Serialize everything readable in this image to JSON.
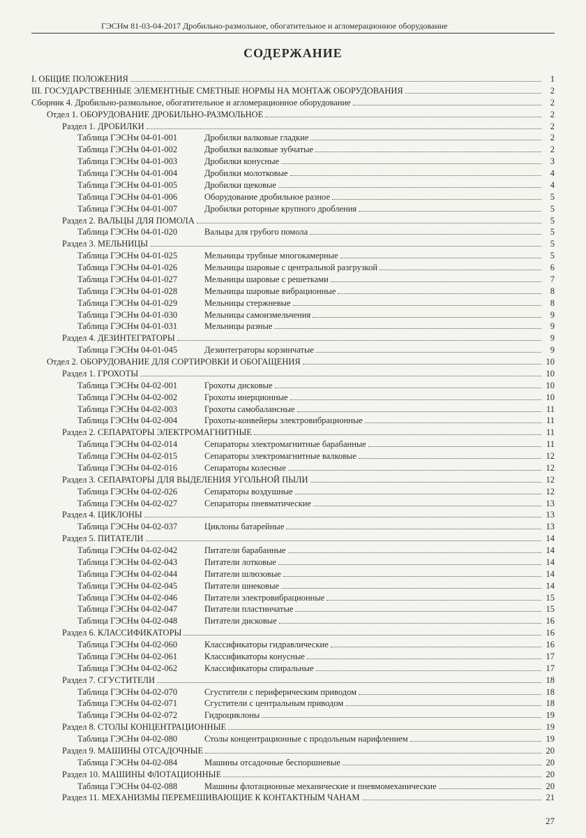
{
  "header": "ГЭСНм 81-03-04-2017 Дробильно-размольное, обогатительное и агломерационное оборудование",
  "title": "СОДЕРЖАНИЕ",
  "page_number": "27",
  "entries": [
    {
      "type": "plain",
      "indent": 0,
      "text": "I. ОБЩИЕ ПОЛОЖЕНИЯ",
      "page": "1"
    },
    {
      "type": "plain",
      "indent": 0,
      "text": "III. ГОСУДАРСТВЕННЫЕ ЭЛЕМЕНТНЫЕ СМЕТНЫЕ НОРМЫ НА МОНТАЖ ОБОРУДОВАНИЯ",
      "page": "2"
    },
    {
      "type": "plain",
      "indent": 0,
      "text": "Сборник 4. Дробильно-размольное, обогатительное и агломерационное оборудование",
      "page": "2"
    },
    {
      "type": "plain",
      "indent": 1,
      "text": "Отдел 1. ОБОРУДОВАНИЕ ДРОБИЛЬНО-РАЗМОЛЬНОЕ",
      "page": "2"
    },
    {
      "type": "plain",
      "indent": 2,
      "text": "Раздел 1. ДРОБИЛКИ",
      "page": "2"
    },
    {
      "type": "table",
      "code": "Таблица ГЭСНм 04-01-001",
      "desc": "Дробилки валковые гладкие",
      "page": "2"
    },
    {
      "type": "table",
      "code": "Таблица ГЭСНм 04-01-002",
      "desc": "Дробилки валковые зубчатые",
      "page": "2"
    },
    {
      "type": "table",
      "code": "Таблица ГЭСНм 04-01-003",
      "desc": "Дробилки конусные",
      "page": "3"
    },
    {
      "type": "table",
      "code": "Таблица ГЭСНм 04-01-004",
      "desc": "Дробилки молотковые",
      "page": "4"
    },
    {
      "type": "table",
      "code": "Таблица ГЭСНм 04-01-005",
      "desc": "Дробилки щековые",
      "page": "4"
    },
    {
      "type": "table",
      "code": "Таблица ГЭСНм 04-01-006",
      "desc": "Оборудование дробильное разное",
      "page": "5"
    },
    {
      "type": "table",
      "code": "Таблица ГЭСНм 04-01-007",
      "desc": "Дробилки роторные крупного дробления",
      "page": "5"
    },
    {
      "type": "plain",
      "indent": 2,
      "text": "Раздел 2. ВАЛЬЦЫ ДЛЯ ПОМОЛА",
      "page": "5"
    },
    {
      "type": "table",
      "code": "Таблица ГЭСНм 04-01-020",
      "desc": "Вальцы для грубого помола",
      "page": "5"
    },
    {
      "type": "plain",
      "indent": 2,
      "text": "Раздел 3. МЕЛЬНИЦЫ",
      "page": "5"
    },
    {
      "type": "table",
      "code": "Таблица ГЭСНм 04-01-025",
      "desc": "Мельницы трубные многокамерные",
      "page": "5"
    },
    {
      "type": "table",
      "code": "Таблица ГЭСНм 04-01-026",
      "desc": "Мельницы шаровые с центральной разгрузкой",
      "page": "6"
    },
    {
      "type": "table",
      "code": "Таблица ГЭСНм 04-01-027",
      "desc": "Мельницы шаровые с решетками",
      "page": "7"
    },
    {
      "type": "table",
      "code": "Таблица ГЭСНм 04-01-028",
      "desc": "Мельницы шаровые вибрационные",
      "page": "8"
    },
    {
      "type": "table",
      "code": "Таблица ГЭСНм 04-01-029",
      "desc": "Мельницы стержневые",
      "page": "8"
    },
    {
      "type": "table",
      "code": "Таблица ГЭСНм 04-01-030",
      "desc": "Мельницы самоизмельчения",
      "page": "9"
    },
    {
      "type": "table",
      "code": "Таблица ГЭСНм 04-01-031",
      "desc": "Мельницы разные",
      "page": "9"
    },
    {
      "type": "plain",
      "indent": 2,
      "text": "Раздел 4. ДЕЗИНТЕГРАТОРЫ",
      "page": "9"
    },
    {
      "type": "table",
      "code": "Таблица ГЭСНм 04-01-045",
      "desc": "Дезинтеграторы корзинчатые",
      "page": "9"
    },
    {
      "type": "plain",
      "indent": 1,
      "text": "Отдел 2. ОБОРУДОВАНИЕ ДЛЯ СОРТИРОВКИ И ОБОГАЩЕНИЯ",
      "page": "10"
    },
    {
      "type": "plain",
      "indent": 2,
      "text": "Раздел 1. ГРОХОТЫ",
      "page": "10"
    },
    {
      "type": "table",
      "code": "Таблица ГЭСНм 04-02-001",
      "desc": "Грохоты дисковые",
      "page": "10"
    },
    {
      "type": "table",
      "code": "Таблица ГЭСНм 04-02-002",
      "desc": "Грохоты инерционные",
      "page": "10"
    },
    {
      "type": "table",
      "code": "Таблица ГЭСНм 04-02-003",
      "desc": "Грохоты самобалансные",
      "page": "11"
    },
    {
      "type": "table",
      "code": "Таблица ГЭСНм 04-02-004",
      "desc": "Грохоты-конвейеры электровибрационные",
      "page": "11"
    },
    {
      "type": "plain",
      "indent": 2,
      "text": "Раздел 2. СЕПАРАТОРЫ ЭЛЕКТРОМАГНИТНЫЕ",
      "page": "11"
    },
    {
      "type": "table",
      "code": "Таблица ГЭСНм 04-02-014",
      "desc": "Сепараторы электромагнитные барабанные",
      "page": "11"
    },
    {
      "type": "table",
      "code": "Таблица ГЭСНм 04-02-015",
      "desc": "Сепараторы электромагнитные валковые",
      "page": "12"
    },
    {
      "type": "table",
      "code": "Таблица ГЭСНм 04-02-016",
      "desc": "Сепараторы колесные",
      "page": "12"
    },
    {
      "type": "plain",
      "indent": 2,
      "text": "Раздел 3. СЕПАРАТОРЫ ДЛЯ ВЫДЕЛЕНИЯ УГОЛЬНОЙ ПЫЛИ",
      "page": "12"
    },
    {
      "type": "table",
      "code": "Таблица ГЭСНм 04-02-026",
      "desc": "Сепараторы воздушные",
      "page": "12"
    },
    {
      "type": "table",
      "code": "Таблица ГЭСНм 04-02-027",
      "desc": "Сепараторы пневматические",
      "page": "13"
    },
    {
      "type": "plain",
      "indent": 2,
      "text": "Раздел 4. ЦИКЛОНЫ",
      "page": "13"
    },
    {
      "type": "table",
      "code": "Таблица ГЭСНм 04-02-037",
      "desc": "Циклоны батарейные",
      "page": "13"
    },
    {
      "type": "plain",
      "indent": 2,
      "text": "Раздел 5. ПИТАТЕЛИ",
      "page": "14"
    },
    {
      "type": "table",
      "code": "Таблица ГЭСНм 04-02-042",
      "desc": "Питатели барабанные",
      "page": "14"
    },
    {
      "type": "table",
      "code": "Таблица ГЭСНм 04-02-043",
      "desc": "Питатели лотковые",
      "page": "14"
    },
    {
      "type": "table",
      "code": "Таблица ГЭСНм 04-02-044",
      "desc": "Питатели шлюзовые",
      "page": "14"
    },
    {
      "type": "table",
      "code": "Таблица ГЭСНм 04-02-045",
      "desc": "Питатели шнековые",
      "page": "14"
    },
    {
      "type": "table",
      "code": "Таблица ГЭСНм 04-02-046",
      "desc": "Питатели электровибрационные",
      "page": "15"
    },
    {
      "type": "table",
      "code": "Таблица ГЭСНм 04-02-047",
      "desc": "Питатели пластинчатые",
      "page": "15"
    },
    {
      "type": "table",
      "code": "Таблица ГЭСНм 04-02-048",
      "desc": "Питатели дисковые",
      "page": "16"
    },
    {
      "type": "plain",
      "indent": 2,
      "text": "Раздел 6. КЛАССИФИКАТОРЫ",
      "page": "16"
    },
    {
      "type": "table",
      "code": "Таблица ГЭСНм 04-02-060",
      "desc": "Классификаторы гидравлические",
      "page": "16"
    },
    {
      "type": "table",
      "code": "Таблица ГЭСНм 04-02-061",
      "desc": "Классификаторы конусные",
      "page": "17"
    },
    {
      "type": "table",
      "code": "Таблица ГЭСНм 04-02-062",
      "desc": "Классификаторы спиральные",
      "page": "17"
    },
    {
      "type": "plain",
      "indent": 2,
      "text": "Раздел 7. СГУСТИТЕЛИ",
      "page": "18"
    },
    {
      "type": "table",
      "code": "Таблица ГЭСНм 04-02-070",
      "desc": "Сгустители с периферическим приводом",
      "page": "18"
    },
    {
      "type": "table",
      "code": "Таблица ГЭСНм 04-02-071",
      "desc": "Сгустители с центральным приводом",
      "page": "18"
    },
    {
      "type": "table",
      "code": "Таблица ГЭСНм 04-02-072",
      "desc": "Гидроциклоны",
      "page": "19"
    },
    {
      "type": "plain",
      "indent": 2,
      "text": "Раздел 8. СТОЛЫ КОНЦЕНТРАЦИОННЫЕ",
      "page": "19"
    },
    {
      "type": "table",
      "code": "Таблица ГЭСНм 04-02-080",
      "desc": "Столы концентрационные с продольным нарифлением",
      "page": "19"
    },
    {
      "type": "plain",
      "indent": 2,
      "text": "Раздел 9. МАШИНЫ ОТСАДОЧНЫЕ",
      "page": "20"
    },
    {
      "type": "table",
      "code": "Таблица ГЭСНм 04-02-084",
      "desc": "Машины отсадочные беспоршневые",
      "page": "20"
    },
    {
      "type": "plain",
      "indent": 2,
      "text": "Раздел 10. МАШИНЫ ФЛОТАЦИОННЫЕ",
      "page": "20"
    },
    {
      "type": "table",
      "code": "Таблица ГЭСНм 04-02-088",
      "desc": "Машины флотационные механические и пневмомеханические",
      "page": "20"
    },
    {
      "type": "plain",
      "indent": 2,
      "text": "Раздел 11. МЕХАНИЗМЫ ПЕРЕМЕШИВАЮЩИЕ К КОНТАКТНЫМ ЧАНАМ",
      "page": "21"
    }
  ]
}
